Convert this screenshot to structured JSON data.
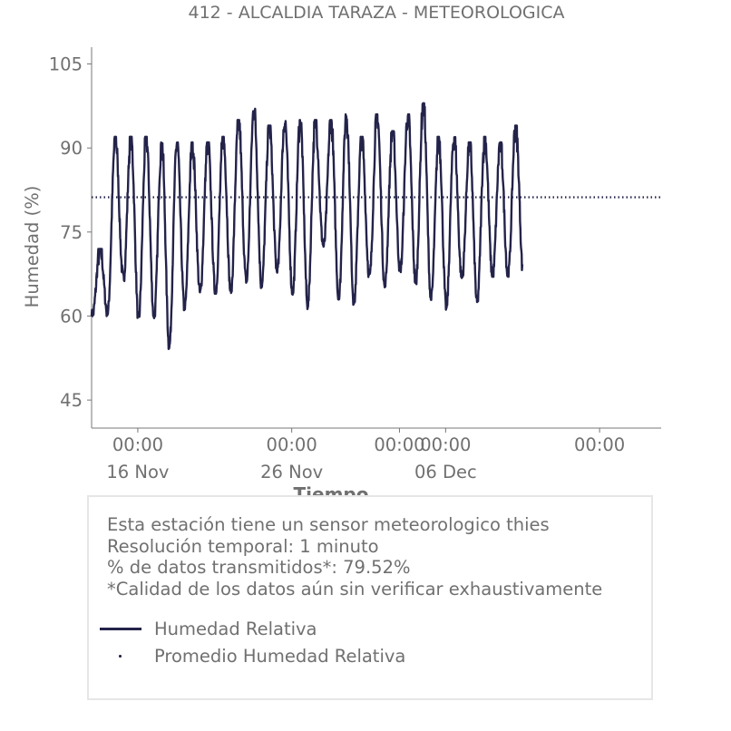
{
  "chart_data": {
    "type": "line",
    "title": "412 - ALCALDIA TARAZA - METEOROLOGICA",
    "xlabel": "Tiempo",
    "ylabel": "Humedad (%)",
    "ylim": [
      40,
      108
    ],
    "yticks": [
      45,
      60,
      75,
      90,
      105
    ],
    "xlim": [
      "2025-11-11",
      "2025-12-18"
    ],
    "xticks": [
      {
        "date": "2025-11-14",
        "label": "00:00",
        "date_label": "16 Nov"
      },
      {
        "date": "2025-11-24",
        "label": "00:00",
        "date_label": "26 Nov"
      },
      {
        "date": "2025-12-01",
        "label": "00:00",
        "date_label": ""
      },
      {
        "date": "2025-12-04",
        "label": "00:00",
        "date_label": "06 Dec"
      },
      {
        "date": "2025-12-14",
        "label": "00:00",
        "date_label": ""
      }
    ],
    "grid": false,
    "series": [
      {
        "name": "Humedad Relativa",
        "style": "solid",
        "color": "#23234a",
        "daily": [
          {
            "date": "2025-11-11",
            "min": 60,
            "max": 72
          },
          {
            "date": "2025-11-12",
            "min": 60,
            "max": 92
          },
          {
            "date": "2025-11-13",
            "min": 67,
            "max": 92
          },
          {
            "date": "2025-11-14",
            "min": 59,
            "max": 92
          },
          {
            "date": "2025-11-15",
            "min": 60,
            "max": 91
          },
          {
            "date": "2025-11-16",
            "min": 54,
            "max": 91
          },
          {
            "date": "2025-11-17",
            "min": 61,
            "max": 91
          },
          {
            "date": "2025-11-18",
            "min": 64,
            "max": 91
          },
          {
            "date": "2025-11-19",
            "min": 64,
            "max": 92
          },
          {
            "date": "2025-11-20",
            "min": 64,
            "max": 95
          },
          {
            "date": "2025-11-21",
            "min": 66,
            "max": 97
          },
          {
            "date": "2025-11-22",
            "min": 65,
            "max": 94
          },
          {
            "date": "2025-11-23",
            "min": 68,
            "max": 95
          },
          {
            "date": "2025-11-24",
            "min": 64,
            "max": 95
          },
          {
            "date": "2025-11-25",
            "min": 61,
            "max": 95
          },
          {
            "date": "2025-11-26",
            "min": 73,
            "max": 95
          },
          {
            "date": "2025-11-27",
            "min": 63,
            "max": 96
          },
          {
            "date": "2025-11-28",
            "min": 62,
            "max": 92
          },
          {
            "date": "2025-11-29",
            "min": 67,
            "max": 96
          },
          {
            "date": "2025-11-30",
            "min": 65,
            "max": 93
          },
          {
            "date": "2025-12-01",
            "min": 68,
            "max": 96
          },
          {
            "date": "2025-12-02",
            "min": 66,
            "max": 98
          },
          {
            "date": "2025-12-03",
            "min": 63,
            "max": 92
          },
          {
            "date": "2025-12-04",
            "min": 61,
            "max": 92
          },
          {
            "date": "2025-12-05",
            "min": 67,
            "max": 91
          },
          {
            "date": "2025-12-06",
            "min": 62,
            "max": 92
          },
          {
            "date": "2025-12-07",
            "min": 67,
            "max": 91
          },
          {
            "date": "2025-12-08",
            "min": 67,
            "max": 94
          }
        ]
      },
      {
        "name": "Promedio Humedad Relativa",
        "style": "dotted",
        "color": "#23234a",
        "value": 81.2
      }
    ]
  },
  "info": {
    "lines": [
      "Esta estación tiene un sensor meteorologico thies",
      "Resolución temporal: 1 minuto",
      "% de datos transmitidos*: 79.52%",
      "*Calidad de los datos aún sin verificar exhaustivamente"
    ]
  },
  "legend": {
    "items": [
      {
        "label": "Humedad Relativa",
        "style": "solid"
      },
      {
        "label": "Promedio Humedad Relativa",
        "style": "dotted"
      }
    ]
  }
}
